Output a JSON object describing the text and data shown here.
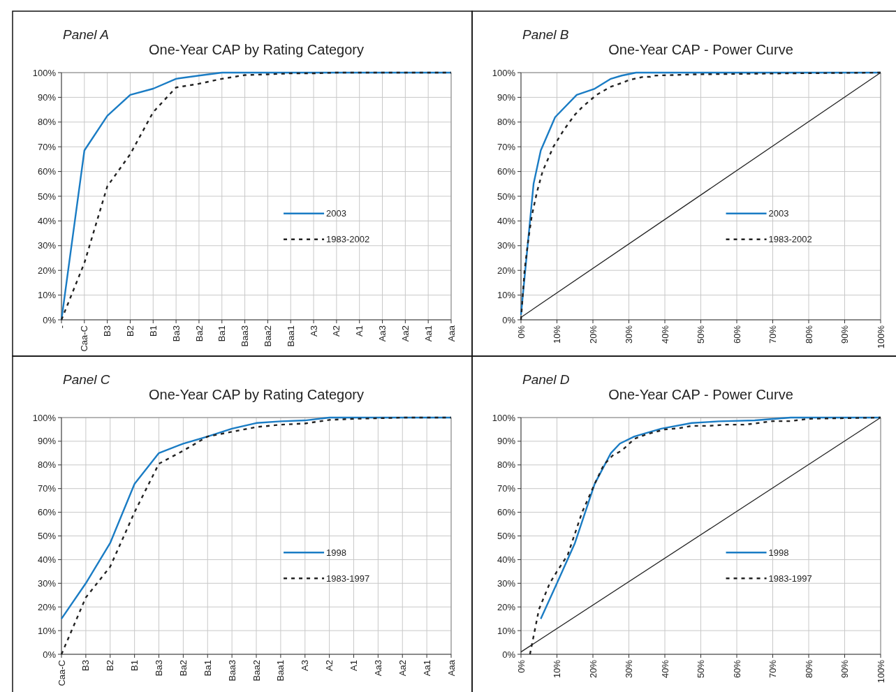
{
  "chart_data": [
    {
      "type": "line",
      "title": "One-Year CAP by Rating Category",
      "annotations": [
        "Panel A"
      ],
      "categories": [
        "-",
        "Caa-C",
        "B3",
        "B2",
        "B1",
        "Ba3",
        "Ba2",
        "Ba1",
        "Baa3",
        "Baa2",
        "Baa1",
        "A3",
        "A2",
        "A1",
        "Aa3",
        "Aa2",
        "Aa1",
        "Aaa"
      ],
      "ylim": [
        0,
        100
      ],
      "yticks": [
        {
          "value": 0,
          "label": "0%"
        },
        {
          "value": 10,
          "label": "10%"
        },
        {
          "value": 20,
          "label": "20%"
        },
        {
          "value": 30,
          "label": "30%"
        },
        {
          "value": 40,
          "label": "40%"
        },
        {
          "value": 50,
          "label": "50%"
        },
        {
          "value": 60,
          "label": "60%"
        },
        {
          "value": 70,
          "label": "70%"
        },
        {
          "value": 80,
          "label": "80%"
        },
        {
          "value": 90,
          "label": "90%"
        },
        {
          "value": 100,
          "label": "100%"
        }
      ],
      "grid": true,
      "legend": "right",
      "marker": "none",
      "series": [
        {
          "name": "2003",
          "color": "#1a7cc4",
          "line_style": "solid",
          "values": [
            0,
            68.5,
            82.5,
            91,
            93.5,
            97.5,
            98.8,
            100,
            100,
            100,
            100,
            100,
            100,
            100,
            100,
            100,
            100,
            100
          ]
        },
        {
          "name": "1983-2002",
          "color": "#222222",
          "line_style": "dashed",
          "values": [
            0,
            23,
            54,
            67,
            84,
            94,
            95.5,
            97.5,
            99,
            99.3,
            99.7,
            99.7,
            100,
            100,
            100,
            100,
            100,
            100
          ]
        }
      ]
    },
    {
      "type": "line",
      "title": "One-Year CAP - Power Curve",
      "annotations": [
        "Panel B"
      ],
      "xlim": [
        0,
        100
      ],
      "xticks": [
        {
          "value": 0,
          "label": "0%"
        },
        {
          "value": 10,
          "label": "10%"
        },
        {
          "value": 20,
          "label": "20%"
        },
        {
          "value": 30,
          "label": "30%"
        },
        {
          "value": 40,
          "label": "40%"
        },
        {
          "value": 50,
          "label": "50%"
        },
        {
          "value": 60,
          "label": "60%"
        },
        {
          "value": 70,
          "label": "70%"
        },
        {
          "value": 80,
          "label": "80%"
        },
        {
          "value": 90,
          "label": "90%"
        },
        {
          "value": 100,
          "label": "100%"
        }
      ],
      "ylim": [
        0,
        100
      ],
      "yticks": [
        {
          "value": 0,
          "label": "0%"
        },
        {
          "value": 10,
          "label": "10%"
        },
        {
          "value": 20,
          "label": "20%"
        },
        {
          "value": 30,
          "label": "30%"
        },
        {
          "value": 40,
          "label": "40%"
        },
        {
          "value": 50,
          "label": "50%"
        },
        {
          "value": 60,
          "label": "60%"
        },
        {
          "value": 70,
          "label": "70%"
        },
        {
          "value": 80,
          "label": "80%"
        },
        {
          "value": 90,
          "label": "90%"
        },
        {
          "value": 100,
          "label": "100%"
        }
      ],
      "grid": true,
      "legend": "right",
      "marker": "none",
      "series": [
        {
          "name": "2003",
          "color": "#1a7cc4",
          "line_style": "solid",
          "x": [
            0,
            3.5,
            5.5,
            9.5,
            15.5,
            20.5,
            25,
            28,
            32,
            100
          ],
          "values": [
            2,
            55,
            68.5,
            82,
            91,
            93.5,
            97.5,
            98.8,
            100,
            100
          ]
        },
        {
          "name": "1983-2002",
          "color": "#222222",
          "line_style": "dashed",
          "x": [
            0,
            1,
            2,
            3,
            4.5,
            6,
            9,
            12,
            15,
            17,
            21,
            25,
            28,
            30,
            34,
            36,
            37,
            42,
            48,
            74,
            100
          ],
          "values": [
            0,
            20,
            32,
            42,
            52,
            60,
            70,
            77,
            83,
            86,
            91,
            94.3,
            95.8,
            97,
            98.3,
            98.3,
            98.8,
            99,
            99.3,
            99.7,
            100
          ]
        },
        {
          "color": "#222222",
          "line_style": "solid",
          "x": [
            0,
            100
          ],
          "values": [
            1,
            100
          ]
        }
      ]
    },
    {
      "type": "line",
      "title": "One-Year CAP by Rating Category",
      "annotations": [
        "Panel C"
      ],
      "categories": [
        "Caa-C",
        "B3",
        "B2",
        "B1",
        "Ba3",
        "Ba2",
        "Ba1",
        "Baa3",
        "Baa2",
        "Baa1",
        "A3",
        "A2",
        "A1",
        "Aa3",
        "Aa2",
        "Aa1",
        "Aaa"
      ],
      "ylim": [
        0,
        100
      ],
      "yticks": [
        {
          "value": 0,
          "label": "0%"
        },
        {
          "value": 10,
          "label": "10%"
        },
        {
          "value": 20,
          "label": "20%"
        },
        {
          "value": 30,
          "label": "30%"
        },
        {
          "value": 40,
          "label": "40%"
        },
        {
          "value": 50,
          "label": "50%"
        },
        {
          "value": 60,
          "label": "60%"
        },
        {
          "value": 70,
          "label": "70%"
        },
        {
          "value": 80,
          "label": "80%"
        },
        {
          "value": 90,
          "label": "90%"
        },
        {
          "value": 100,
          "label": "100%"
        }
      ],
      "grid": true,
      "legend": "right",
      "marker": "none",
      "series": [
        {
          "name": "1998",
          "color": "#1a7cc4",
          "line_style": "solid",
          "values": [
            15,
            30,
            47,
            72,
            85,
            89,
            92,
            95.3,
            97.7,
            98.4,
            98.8,
            100,
            100,
            100,
            100,
            100,
            100
          ]
        },
        {
          "name": "1983-1997",
          "color": "#222222",
          "line_style": "dashed",
          "values": [
            0,
            24,
            37,
            60,
            80.5,
            86,
            92,
            94,
            96,
            97,
            97.5,
            99,
            99.5,
            99.7,
            100,
            100,
            100
          ]
        }
      ]
    },
    {
      "type": "line",
      "title": "One-Year CAP - Power Curve",
      "annotations": [
        "Panel D"
      ],
      "xlim": [
        0,
        100
      ],
      "xticks": [
        {
          "value": 0,
          "label": "0%"
        },
        {
          "value": 10,
          "label": "10%"
        },
        {
          "value": 20,
          "label": "20%"
        },
        {
          "value": 30,
          "label": "30%"
        },
        {
          "value": 40,
          "label": "40%"
        },
        {
          "value": 50,
          "label": "50%"
        },
        {
          "value": 60,
          "label": "60%"
        },
        {
          "value": 70,
          "label": "70%"
        },
        {
          "value": 80,
          "label": "80%"
        },
        {
          "value": 90,
          "label": "90%"
        },
        {
          "value": 100,
          "label": "100%"
        }
      ],
      "ylim": [
        0,
        100
      ],
      "yticks": [
        {
          "value": 0,
          "label": "0%"
        },
        {
          "value": 10,
          "label": "10%"
        },
        {
          "value": 20,
          "label": "20%"
        },
        {
          "value": 30,
          "label": "30%"
        },
        {
          "value": 40,
          "label": "40%"
        },
        {
          "value": 50,
          "label": "50%"
        },
        {
          "value": 60,
          "label": "60%"
        },
        {
          "value": 70,
          "label": "70%"
        },
        {
          "value": 80,
          "label": "80%"
        },
        {
          "value": 90,
          "label": "90%"
        },
        {
          "value": 100,
          "label": "100%"
        }
      ],
      "grid": true,
      "legend": "right",
      "marker": "none",
      "series": [
        {
          "name": "1998",
          "color": "#1a7cc4",
          "line_style": "solid",
          "x": [
            5.5,
            10,
            15,
            20.5,
            25,
            27.5,
            31.5,
            39,
            47.5,
            55,
            65,
            75,
            100
          ],
          "values": [
            15,
            30,
            47,
            72,
            85,
            89,
            92,
            95.3,
            97.7,
            98.4,
            98.8,
            100,
            100
          ]
        },
        {
          "name": "1983-1997",
          "color": "#222222",
          "line_style": "dashed",
          "x": [
            2.5,
            5,
            8,
            10,
            13,
            17,
            20.5,
            23,
            25.5,
            28,
            31.5,
            35,
            40,
            44,
            47.5,
            52,
            57,
            62,
            65,
            70,
            75,
            80,
            100
          ],
          "values": [
            0,
            19,
            30,
            35,
            42,
            60,
            72,
            80,
            84,
            86,
            91,
            93,
            95,
            95.5,
            96.5,
            96.5,
            97,
            97,
            97.5,
            98.5,
            98.5,
            99.5,
            100
          ]
        },
        {
          "color": "#222222",
          "line_style": "solid",
          "x": [
            0,
            100
          ],
          "values": [
            1,
            100
          ]
        }
      ]
    }
  ]
}
